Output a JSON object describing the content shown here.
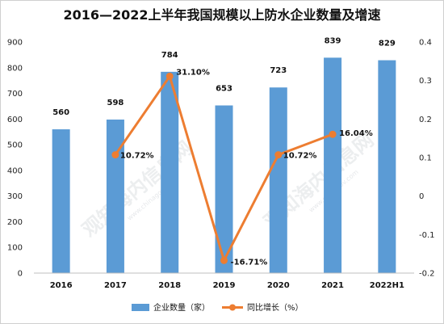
{
  "chart_data": {
    "type": "bar",
    "title": "2016—2022上半年我国规模以上防水企业数量及增速",
    "categories": [
      "2016",
      "2017",
      "2018",
      "2019",
      "2020",
      "2021",
      "2022H1"
    ],
    "series": [
      {
        "name": "企业数量（家）",
        "kind": "bar",
        "axis": "left",
        "color": "#5b9bd5",
        "values": [
          560,
          598,
          784,
          653,
          723,
          839,
          829
        ],
        "labels": [
          "560",
          "598",
          "784",
          "653",
          "723",
          "839",
          "829"
        ]
      },
      {
        "name": "同比增长（%）",
        "kind": "line",
        "axis": "right",
        "color": "#ed7d31",
        "values": [
          null,
          0.1072,
          0.311,
          -0.1671,
          0.1072,
          0.1604,
          null
        ],
        "labels": [
          "",
          "10.72%",
          "31.10%",
          "-16.71%",
          "10.72%",
          "16.04%",
          ""
        ]
      }
    ],
    "y_left": {
      "min": 0,
      "max": 900,
      "step": 100,
      "ticks": [
        "0",
        "100",
        "200",
        "300",
        "400",
        "500",
        "600",
        "700",
        "800",
        "900"
      ]
    },
    "y_right": {
      "min": -0.2,
      "max": 0.4,
      "step": 0.1,
      "ticks": [
        "-0.2",
        "-0.1",
        "0",
        "0.1",
        "0.2",
        "0.3",
        "0.4"
      ]
    },
    "grid": false,
    "legend_position": "bottom"
  },
  "watermark": {
    "text": "观知海内信息网",
    "sub": "www.chinagov.com"
  }
}
